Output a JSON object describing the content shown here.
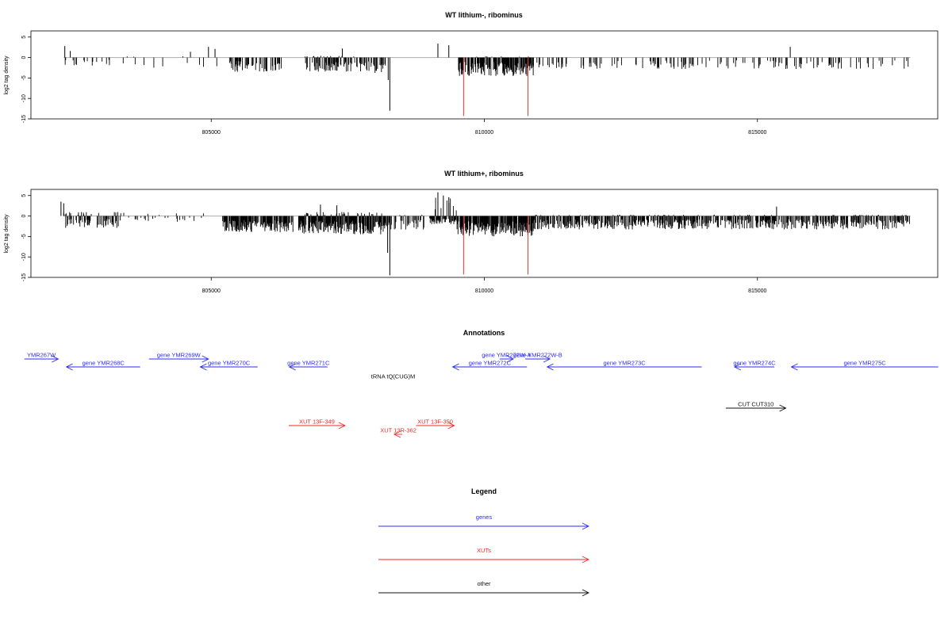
{
  "chart_data": [
    {
      "type": "bar",
      "title": "WT lithium-, ribominus",
      "ylabel": "log2 tag density",
      "xlim": [
        801700,
        818300
      ],
      "ylim": [
        -15,
        6.5
      ],
      "x_ticks": [
        805000,
        810000,
        815000
      ],
      "y_ticks": [
        5,
        0,
        -5,
        -10,
        -15
      ],
      "density": "sparse",
      "seed": 11,
      "spikes": [
        {
          "x": 802320,
          "y": 2.8
        },
        {
          "x": 802420,
          "y": 1.6
        },
        {
          "x": 804620,
          "y": 1.4
        },
        {
          "x": 804950,
          "y": 2.6
        },
        {
          "x": 805070,
          "y": 2.1
        },
        {
          "x": 807400,
          "y": 2.2
        },
        {
          "x": 809150,
          "y": 3.4
        },
        {
          "x": 809350,
          "y": 3.0
        },
        {
          "x": 808270,
          "y": -13.0
        },
        {
          "x": 808240,
          "y": -5.5
        },
        {
          "x": 815600,
          "y": 2.6
        }
      ],
      "markers_x": [
        809620,
        810800
      ],
      "marker_color": "#e8302a"
    },
    {
      "type": "bar",
      "title": "WT lithium+, ribominus",
      "ylabel": "log2 tag density",
      "xlim": [
        801700,
        818300
      ],
      "ylim": [
        -15,
        6.5
      ],
      "x_ticks": [
        805000,
        810000,
        815000
      ],
      "y_ticks": [
        5,
        0,
        -5,
        -10,
        -15
      ],
      "density": "dense",
      "seed": 29,
      "spikes": [
        {
          "x": 802250,
          "y": 3.5
        },
        {
          "x": 802300,
          "y": 3.1
        },
        {
          "x": 809150,
          "y": 5.8
        },
        {
          "x": 809250,
          "y": 5.0
        },
        {
          "x": 809350,
          "y": 4.6
        },
        {
          "x": 807000,
          "y": 2.8
        },
        {
          "x": 807300,
          "y": 2.6
        },
        {
          "x": 808270,
          "y": -14.5
        },
        {
          "x": 808230,
          "y": -9.0
        },
        {
          "x": 815350,
          "y": 2.3
        }
      ],
      "markers_x": [
        809620,
        810800
      ],
      "marker_color": "#e8302a"
    }
  ],
  "annotations": {
    "title": "Annotations",
    "items": [
      {
        "label": "YMR267W",
        "start": 801580,
        "end": 802200,
        "dir": "right",
        "row": 0,
        "type": "gene"
      },
      {
        "label": "gene YMR268C",
        "start": 802350,
        "end": 803700,
        "dir": "left",
        "row": 1,
        "type": "gene"
      },
      {
        "label": "gene YMR269W",
        "start": 803860,
        "end": 804950,
        "dir": "right",
        "row": 0,
        "type": "gene"
      },
      {
        "label": "gene YMR270C",
        "start": 804800,
        "end": 805850,
        "dir": "left",
        "row": 1,
        "type": "gene"
      },
      {
        "label": "gene YMR271C",
        "start": 806430,
        "end": 807130,
        "dir": "left",
        "row": 1,
        "type": "gene"
      },
      {
        "label": "gene YMR272C",
        "start": 809420,
        "end": 810780,
        "dir": "left",
        "row": 1,
        "type": "gene"
      },
      {
        "label": "gene YMR272W-A",
        "start": 810280,
        "end": 810530,
        "dir": "right",
        "row": 0,
        "type": "gene"
      },
      {
        "label": "gene YMR272W-B",
        "start": 810750,
        "end": 811200,
        "dir": "right",
        "row": 0,
        "type": "gene"
      },
      {
        "label": "gene YMR273C",
        "start": 811150,
        "end": 813980,
        "dir": "left",
        "row": 1,
        "type": "gene"
      },
      {
        "label": "gene YMR274C",
        "start": 814580,
        "end": 815310,
        "dir": "left",
        "row": 1,
        "type": "gene"
      },
      {
        "label": "gene YMR275C",
        "start": 815620,
        "end": 818310,
        "dir": "left",
        "row": 1,
        "type": "gene"
      },
      {
        "label": "tRNA tQ(CUG)M",
        "start": 808180,
        "end": 808480,
        "dir": "left",
        "row": 2,
        "type": "other"
      },
      {
        "label": "CUT CUT310",
        "start": 814420,
        "end": 815520,
        "dir": "right",
        "row": 3,
        "type": "other"
      },
      {
        "label": "XUT 13F-349",
        "start": 806420,
        "end": 807450,
        "dir": "right",
        "row": 4,
        "type": "xut"
      },
      {
        "label": "XUT 13R-362",
        "start": 808350,
        "end": 808500,
        "dir": "left",
        "row": 5,
        "type": "xut"
      },
      {
        "label": "XUT 13F-350",
        "start": 808750,
        "end": 809450,
        "dir": "right",
        "row": 4,
        "type": "xut"
      }
    ]
  },
  "legend": {
    "title": "Legend",
    "entries": [
      {
        "label": "genes",
        "color": "#2b2bf5"
      },
      {
        "label": "XUTs",
        "color": "#ee2a2a"
      },
      {
        "label": "other",
        "color": "#111111"
      }
    ]
  },
  "colors": {
    "gene": "#2b2bf5",
    "xut": "#ee2a2a",
    "other": "#111111",
    "baseline": "#b5b5b5"
  }
}
